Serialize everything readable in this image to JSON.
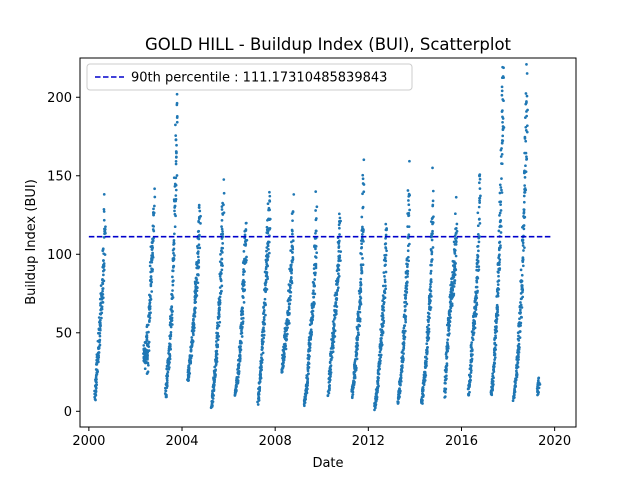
{
  "chart_data": {
    "type": "scatter",
    "title": "GOLD HILL - Buildup Index (BUI), Scatterplot",
    "xlabel": "Date",
    "ylabel": "Buildup Index (BUI)",
    "xlim": [
      "1999-08-15",
      "2020-12-01"
    ],
    "ylim": [
      -10,
      225
    ],
    "x_ticks": [
      "2000",
      "2004",
      "2008",
      "2012",
      "2016",
      "2020"
    ],
    "y_ticks": [
      0,
      50,
      100,
      150,
      200
    ],
    "colors": {
      "points": "#1f77b4",
      "reference": "#0000cc"
    },
    "legend": {
      "placement": "upper-left"
    },
    "grid": false,
    "reference_line": {
      "label": "90th percentile : 111.17310485839843",
      "value": 111.17310485839843,
      "x_start": "2000-01-01",
      "x_end": "2019-11-30",
      "style": "dashed"
    },
    "series": [
      {
        "seasons": [
          {
            "year": 2000,
            "start": "2000-04-01",
            "end": "2000-09-10",
            "points": [
              [
                0,
                8
              ],
              [
                0.1,
                15
              ],
              [
                0.2,
                25
              ],
              [
                0.3,
                35
              ],
              [
                0.4,
                40
              ],
              [
                0.5,
                55
              ],
              [
                0.6,
                65
              ],
              [
                0.7,
                75
              ],
              [
                0.8,
                88
              ],
              [
                0.9,
                105
              ],
              [
                1,
                127
              ]
            ]
          },
          {
            "year": 2002,
            "start": "2002-05-10",
            "end": "2002-10-20",
            "points": [
              [
                0,
                35
              ],
              [
                0.1,
                40
              ],
              [
                0.2,
                30
              ],
              [
                0.3,
                50
              ],
              [
                0.4,
                25
              ],
              [
                0.5,
                60
              ],
              [
                0.6,
                70
              ],
              [
                0.7,
                85
              ],
              [
                0.8,
                100
              ],
              [
                0.9,
                115
              ],
              [
                1,
                128
              ]
            ]
          },
          {
            "year": 2003,
            "start": "2003-04-20",
            "end": "2003-10-15",
            "points": [
              [
                0,
                10
              ],
              [
                0.15,
                25
              ],
              [
                0.3,
                35
              ],
              [
                0.45,
                50
              ],
              [
                0.6,
                75
              ],
              [
                0.7,
                100
              ],
              [
                0.8,
                130
              ],
              [
                0.9,
                160
              ],
              [
                1,
                186
              ]
            ]
          },
          {
            "year": 2004,
            "start": "2004-04-01",
            "end": "2004-10-10",
            "points": [
              [
                0,
                20
              ],
              [
                0.15,
                30
              ],
              [
                0.3,
                40
              ],
              [
                0.45,
                55
              ],
              [
                0.6,
                70
              ],
              [
                0.75,
                85
              ],
              [
                0.85,
                100
              ],
              [
                0.95,
                115
              ],
              [
                1,
                124
              ]
            ]
          },
          {
            "year": 2005,
            "start": "2005-04-10",
            "end": "2005-10-10",
            "points": [
              [
                0,
                3
              ],
              [
                0.15,
                15
              ],
              [
                0.3,
                25
              ],
              [
                0.45,
                40
              ],
              [
                0.6,
                60
              ],
              [
                0.75,
                80
              ],
              [
                0.85,
                100
              ],
              [
                0.95,
                120
              ],
              [
                1,
                133
              ]
            ]
          },
          {
            "year": 2006,
            "start": "2006-04-15",
            "end": "2006-10-05",
            "points": [
              [
                0,
                10
              ],
              [
                0.2,
                20
              ],
              [
                0.35,
                30
              ],
              [
                0.5,
                45
              ],
              [
                0.6,
                60
              ],
              [
                0.75,
                80
              ],
              [
                0.85,
                95
              ],
              [
                1,
                112
              ]
            ]
          },
          {
            "year": 2007,
            "start": "2007-04-10",
            "end": "2007-10-10",
            "points": [
              [
                0,
                5
              ],
              [
                0.15,
                20
              ],
              [
                0.3,
                35
              ],
              [
                0.45,
                55
              ],
              [
                0.6,
                75
              ],
              [
                0.75,
                95
              ],
              [
                0.85,
                110
              ],
              [
                0.95,
                125
              ],
              [
                1,
                134
              ]
            ]
          },
          {
            "year": 2008,
            "start": "2008-04-15",
            "end": "2008-10-10",
            "points": [
              [
                0,
                25
              ],
              [
                0.15,
                35
              ],
              [
                0.3,
                45
              ],
              [
                0.45,
                55
              ],
              [
                0.6,
                65
              ],
              [
                0.75,
                80
              ],
              [
                0.85,
                95
              ],
              [
                1,
                122
              ]
            ]
          },
          {
            "year": 2009,
            "start": "2009-04-10",
            "end": "2009-10-10",
            "points": [
              [
                0,
                5
              ],
              [
                0.15,
                15
              ],
              [
                0.3,
                30
              ],
              [
                0.45,
                45
              ],
              [
                0.6,
                60
              ],
              [
                0.75,
                75
              ],
              [
                0.85,
                90
              ],
              [
                0.95,
                110
              ],
              [
                1,
                126
              ]
            ]
          },
          {
            "year": 2010,
            "start": "2010-04-15",
            "end": "2010-10-15",
            "points": [
              [
                0,
                10
              ],
              [
                0.15,
                25
              ],
              [
                0.3,
                40
              ],
              [
                0.45,
                50
              ],
              [
                0.6,
                65
              ],
              [
                0.75,
                80
              ],
              [
                0.85,
                95
              ],
              [
                1,
                112
              ]
            ]
          },
          {
            "year": 2011,
            "start": "2011-04-20",
            "end": "2011-10-20",
            "points": [
              [
                0,
                10
              ],
              [
                0.15,
                20
              ],
              [
                0.3,
                30
              ],
              [
                0.45,
                45
              ],
              [
                0.6,
                60
              ],
              [
                0.75,
                80
              ],
              [
                0.85,
                100
              ],
              [
                0.95,
                125
              ],
              [
                1,
                143
              ]
            ]
          },
          {
            "year": 2012,
            "start": "2012-04-10",
            "end": "2012-10-10",
            "points": [
              [
                0,
                2
              ],
              [
                0.15,
                10
              ],
              [
                0.3,
                20
              ],
              [
                0.45,
                35
              ],
              [
                0.6,
                50
              ],
              [
                0.75,
                65
              ],
              [
                0.85,
                85
              ],
              [
                1,
                108
              ]
            ]
          },
          {
            "year": 2013,
            "start": "2013-04-10",
            "end": "2013-10-05",
            "points": [
              [
                0,
                5
              ],
              [
                0.15,
                15
              ],
              [
                0.3,
                25
              ],
              [
                0.45,
                40
              ],
              [
                0.6,
                60
              ],
              [
                0.75,
                80
              ],
              [
                0.85,
                100
              ],
              [
                0.95,
                125
              ],
              [
                1,
                148
              ]
            ]
          },
          {
            "year": 2014,
            "start": "2014-04-15",
            "end": "2014-10-15",
            "points": [
              [
                0,
                5
              ],
              [
                0.15,
                15
              ],
              [
                0.3,
                25
              ],
              [
                0.45,
                40
              ],
              [
                0.6,
                55
              ],
              [
                0.75,
                75
              ],
              [
                0.85,
                95
              ],
              [
                0.95,
                120
              ],
              [
                1,
                137
              ]
            ]
          },
          {
            "year": 2015,
            "start": "2015-04-10",
            "end": "2015-10-15",
            "points": [
              [
                0,
                10
              ],
              [
                0.15,
                30
              ],
              [
                0.3,
                50
              ],
              [
                0.45,
                65
              ],
              [
                0.6,
                75
              ],
              [
                0.75,
                85
              ],
              [
                0.85,
                95
              ],
              [
                0.95,
                110
              ],
              [
                1,
                125
              ]
            ]
          },
          {
            "year": 2016,
            "start": "2016-04-20",
            "end": "2016-10-15",
            "points": [
              [
                0,
                10
              ],
              [
                0.15,
                25
              ],
              [
                0.3,
                40
              ],
              [
                0.45,
                55
              ],
              [
                0.6,
                65
              ],
              [
                0.75,
                80
              ],
              [
                0.85,
                100
              ],
              [
                0.95,
                130
              ],
              [
                1,
                156
              ]
            ]
          },
          {
            "year": 2017,
            "start": "2017-04-10",
            "end": "2017-10-20",
            "points": [
              [
                0,
                10
              ],
              [
                0.15,
                20
              ],
              [
                0.3,
                40
              ],
              [
                0.45,
                60
              ],
              [
                0.6,
                85
              ],
              [
                0.7,
                110
              ],
              [
                0.8,
                140
              ],
              [
                0.9,
                180
              ],
              [
                1,
                214
              ]
            ]
          },
          {
            "year": 2018,
            "start": "2018-04-01",
            "end": "2018-10-25",
            "points": [
              [
                0,
                8
              ],
              [
                0.15,
                20
              ],
              [
                0.3,
                35
              ],
              [
                0.45,
                55
              ],
              [
                0.6,
                80
              ],
              [
                0.7,
                105
              ],
              [
                0.8,
                135
              ],
              [
                0.9,
                170
              ],
              [
                1,
                199
              ]
            ]
          },
          {
            "year": 2019,
            "start": "2019-04-10",
            "end": "2019-05-05",
            "points": [
              [
                0,
                12
              ],
              [
                0.5,
                16
              ],
              [
                1,
                20
              ]
            ]
          }
        ]
      }
    ]
  }
}
